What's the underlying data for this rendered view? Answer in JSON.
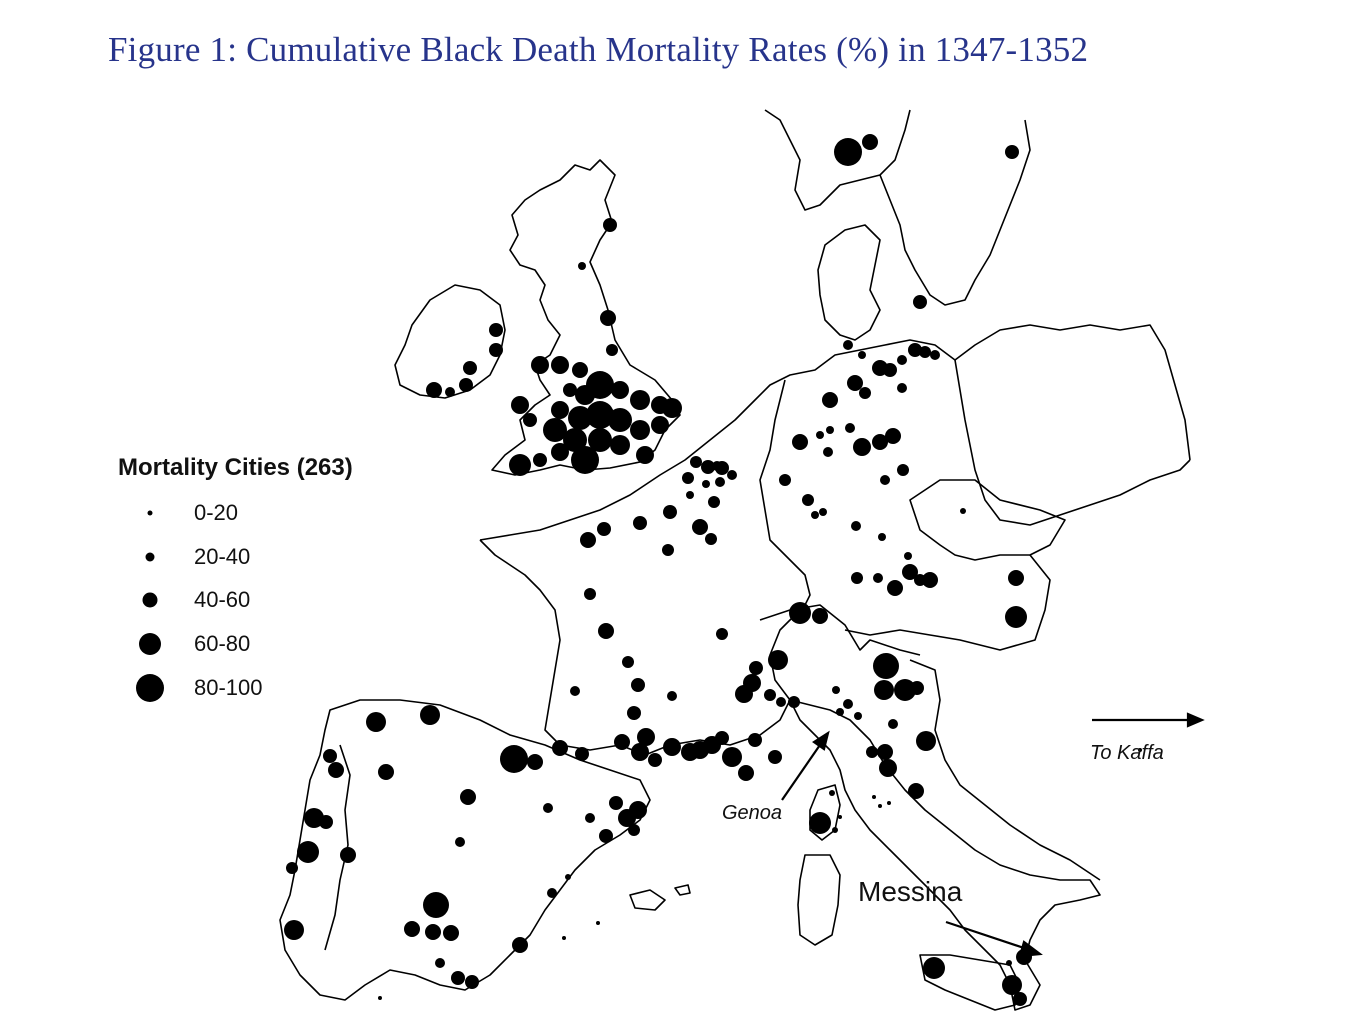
{
  "title": "Figure 1: Cumulative Black Death Mortality Rates (%) in 1347-1352",
  "legend": {
    "title": "Mortality Cities (263)",
    "items": [
      {
        "label": "0-20"
      },
      {
        "label": "20-40"
      },
      {
        "label": "40-60"
      },
      {
        "label": "60-80"
      },
      {
        "label": "80-100"
      }
    ]
  },
  "annotations": {
    "kaffa": "To Kaffa",
    "genoa": "Genoa",
    "messina": "Messina"
  },
  "colors": {
    "title": "#27348b",
    "dots": "#000000",
    "coast": "#000000"
  }
}
